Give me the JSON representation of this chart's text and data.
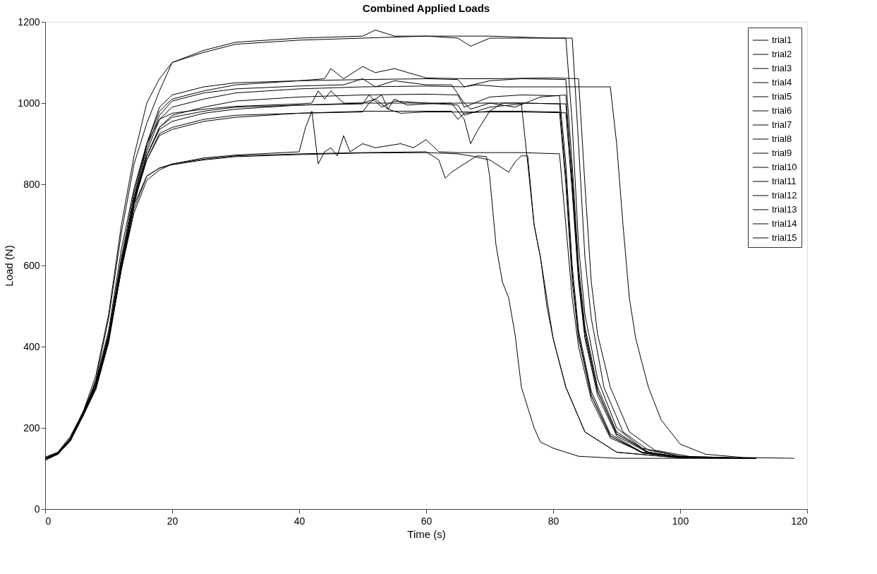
{
  "chart_data": {
    "type": "line",
    "title": "Combined Applied Loads",
    "xlabel": "Time (s)",
    "ylabel": "Load (N)",
    "xlim": [
      0,
      120
    ],
    "ylim": [
      0,
      1200
    ],
    "xticks": [
      0,
      20,
      40,
      60,
      80,
      100,
      120
    ],
    "yticks": [
      0,
      200,
      400,
      600,
      800,
      1000,
      1200
    ],
    "grid": false,
    "legend": "top right",
    "series": [
      {
        "name": "trial1",
        "color": "#000000",
        "x": [
          0,
          2,
          4,
          6,
          8,
          10,
          12,
          14,
          16,
          18,
          20,
          25,
          30,
          40,
          50,
          52,
          55,
          60,
          65,
          67,
          70,
          82,
          83,
          84,
          85,
          87,
          90,
          94,
          100,
          112
        ],
        "values": [
          125,
          135,
          170,
          230,
          320,
          470,
          680,
          850,
          950,
          1030,
          1100,
          1130,
          1150,
          1160,
          1165,
          1180,
          1165,
          1165,
          1160,
          1140,
          1160,
          1160,
          950,
          650,
          480,
          320,
          200,
          150,
          130,
          125
        ]
      },
      {
        "name": "trial2",
        "color": "#000000",
        "x": [
          0,
          2,
          4,
          6,
          8,
          10,
          12,
          14,
          16,
          18,
          20,
          25,
          30,
          40,
          50,
          60,
          70,
          80,
          83,
          84,
          85,
          86,
          88,
          91,
          95,
          100,
          112
        ],
        "values": [
          120,
          135,
          175,
          240,
          330,
          480,
          700,
          870,
          1000,
          1060,
          1100,
          1125,
          1145,
          1155,
          1160,
          1165,
          1165,
          1160,
          1160,
          900,
          620,
          470,
          300,
          190,
          145,
          130,
          125
        ]
      },
      {
        "name": "trial3",
        "color": "#000000",
        "x": [
          0,
          2,
          4,
          6,
          8,
          10,
          12,
          14,
          16,
          18,
          20,
          25,
          30,
          40,
          44,
          45,
          47,
          50,
          52,
          55,
          60,
          66,
          70,
          80,
          84,
          85,
          86,
          87,
          89,
          92,
          96,
          102,
          112
        ],
        "values": [
          125,
          140,
          180,
          240,
          310,
          420,
          600,
          760,
          900,
          980,
          1010,
          1030,
          1045,
          1055,
          1060,
          1085,
          1060,
          1090,
          1075,
          1085,
          1062,
          1060,
          1060,
          1062,
          1060,
          800,
          560,
          430,
          300,
          190,
          145,
          128,
          125
        ]
      },
      {
        "name": "trial4",
        "color": "#000000",
        "x": [
          0,
          2,
          4,
          6,
          8,
          10,
          12,
          14,
          16,
          18,
          20,
          25,
          30,
          40,
          50,
          60,
          65,
          66,
          70,
          75,
          82,
          83,
          84,
          85,
          87,
          90,
          95,
          100,
          112
        ],
        "values": [
          128,
          140,
          175,
          240,
          310,
          430,
          620,
          780,
          900,
          990,
          1020,
          1040,
          1050,
          1055,
          1058,
          1060,
          1058,
          1040,
          1055,
          1060,
          1058,
          850,
          600,
          450,
          300,
          190,
          140,
          128,
          125
        ]
      },
      {
        "name": "trial5",
        "color": "#000000",
        "x": [
          0,
          2,
          4,
          6,
          8,
          10,
          12,
          14,
          16,
          18,
          20,
          25,
          30,
          40,
          50,
          60,
          66,
          68,
          72,
          80,
          89,
          90,
          91,
          92,
          93,
          95,
          97,
          100,
          104,
          110,
          118
        ],
        "values": [
          125,
          135,
          170,
          235,
          300,
          420,
          600,
          760,
          880,
          960,
          990,
          1010,
          1025,
          1035,
          1040,
          1042,
          1040,
          1045,
          1040,
          1040,
          1040,
          900,
          700,
          520,
          420,
          300,
          220,
          160,
          135,
          127,
          125
        ]
      },
      {
        "name": "trial6",
        "color": "#000000",
        "x": [
          0,
          2,
          4,
          6,
          8,
          10,
          12,
          14,
          16,
          18,
          20,
          25,
          30,
          40,
          47,
          50,
          52,
          55,
          60,
          64,
          66,
          67,
          70,
          74,
          78,
          82,
          83,
          84,
          85,
          87,
          90,
          95,
          100,
          112
        ],
        "values": [
          125,
          138,
          172,
          238,
          305,
          425,
          610,
          770,
          890,
          970,
          1005,
          1025,
          1035,
          1042,
          1045,
          1060,
          1040,
          1055,
          1045,
          1045,
          1000,
          985,
          1000,
          990,
          1015,
          1020,
          800,
          570,
          430,
          290,
          185,
          140,
          128,
          125
        ]
      },
      {
        "name": "trial7",
        "color": "#000000",
        "x": [
          0,
          2,
          4,
          6,
          8,
          10,
          12,
          14,
          16,
          18,
          20,
          25,
          30,
          40,
          50,
          60,
          65,
          66,
          70,
          75,
          81,
          82,
          83,
          84,
          86,
          89,
          94,
          100,
          112
        ],
        "values": [
          125,
          137,
          170,
          230,
          295,
          410,
          590,
          750,
          870,
          940,
          970,
          990,
          1005,
          1015,
          1020,
          1022,
          1020,
          990,
          1015,
          1020,
          1018,
          850,
          600,
          440,
          290,
          185,
          140,
          128,
          125
        ]
      },
      {
        "name": "trial8",
        "color": "#000000",
        "x": [
          0,
          2,
          4,
          6,
          8,
          10,
          12,
          14,
          16,
          18,
          20,
          25,
          30,
          40,
          50,
          51,
          53,
          55,
          60,
          64,
          66,
          67,
          68,
          70,
          72,
          75,
          81,
          82,
          83,
          84,
          86,
          89,
          94,
          100,
          112
        ],
        "values": [
          125,
          135,
          168,
          232,
          300,
          415,
          600,
          755,
          870,
          935,
          955,
          975,
          985,
          995,
          998,
          1020,
          990,
          1005,
          1000,
          1000,
          960,
          900,
          930,
          980,
          1000,
          1000,
          998,
          820,
          580,
          430,
          280,
          180,
          140,
          128,
          125
        ]
      },
      {
        "name": "trial9",
        "color": "#000000",
        "x": [
          0,
          2,
          4,
          6,
          8,
          10,
          12,
          14,
          16,
          18,
          20,
          25,
          30,
          40,
          50,
          60,
          65,
          66,
          70,
          75,
          76,
          77,
          78,
          80,
          82,
          85,
          90,
          100,
          112
        ],
        "values": [
          125,
          136,
          170,
          235,
          300,
          420,
          600,
          760,
          870,
          940,
          965,
          980,
          990,
          995,
          1000,
          1000,
          995,
          970,
          990,
          998,
          850,
          700,
          620,
          420,
          300,
          190,
          140,
          126,
          125
        ]
      },
      {
        "name": "trial10",
        "color": "#000000",
        "x": [
          0,
          2,
          4,
          6,
          8,
          10,
          12,
          14,
          16,
          18,
          20,
          25,
          30,
          40,
          50,
          60,
          64,
          65,
          66,
          70,
          75,
          81,
          82,
          83,
          84,
          86,
          89,
          94,
          100,
          112
        ],
        "values": [
          125,
          138,
          172,
          236,
          305,
          425,
          600,
          760,
          860,
          920,
          935,
          955,
          965,
          975,
          980,
          980,
          980,
          960,
          975,
          980,
          980,
          978,
          800,
          560,
          420,
          280,
          180,
          138,
          127,
          125
        ]
      },
      {
        "name": "trial11",
        "color": "#000000",
        "x": [
          0,
          2,
          4,
          6,
          8,
          10,
          12,
          14,
          16,
          18,
          20,
          25,
          30,
          40,
          50,
          51,
          52,
          54,
          56,
          60,
          65,
          70,
          75,
          82,
          83,
          84,
          85,
          87,
          90,
          95,
          100,
          112
        ],
        "values": [
          122,
          135,
          170,
          235,
          300,
          420,
          600,
          755,
          860,
          925,
          940,
          960,
          970,
          975,
          978,
          1000,
          1010,
          985,
          975,
          978,
          978,
          978,
          978,
          976,
          780,
          560,
          420,
          280,
          180,
          138,
          127,
          125
        ]
      },
      {
        "name": "trial12",
        "color": "#000000",
        "x": [
          0,
          2,
          4,
          6,
          8,
          10,
          12,
          14,
          16,
          18,
          20,
          25,
          30,
          40,
          41,
          42,
          43,
          44,
          45,
          46,
          47,
          48,
          50,
          52,
          54,
          56,
          58,
          60,
          62,
          65,
          70,
          75,
          81,
          82,
          83,
          84,
          86,
          89,
          94,
          100,
          112
        ],
        "values": [
          125,
          137,
          175,
          240,
          310,
          430,
          610,
          750,
          820,
          840,
          850,
          865,
          872,
          880,
          940,
          980,
          850,
          880,
          890,
          870,
          920,
          880,
          900,
          890,
          895,
          900,
          890,
          910,
          880,
          878,
          878,
          878,
          875,
          700,
          520,
          400,
          270,
          175,
          140,
          127,
          125
        ]
      },
      {
        "name": "trial13",
        "color": "#000000",
        "x": [
          0,
          2,
          4,
          6,
          8,
          10,
          12,
          14,
          16,
          18,
          20,
          25,
          30,
          40,
          50,
          60,
          62,
          63,
          64,
          66,
          68,
          69.5,
          70,
          71,
          72,
          73,
          74,
          75,
          76,
          77,
          78,
          80,
          84,
          90,
          100,
          112
        ],
        "values": [
          125,
          137,
          172,
          236,
          300,
          420,
          590,
          730,
          810,
          835,
          850,
          862,
          870,
          875,
          878,
          880,
          860,
          815,
          830,
          850,
          870,
          868,
          820,
          650,
          560,
          520,
          430,
          300,
          250,
          200,
          165,
          150,
          130,
          125,
          125,
          125
        ]
      },
      {
        "name": "trial14",
        "color": "#000000",
        "x": [
          0,
          2,
          4,
          6,
          8,
          10,
          12,
          14,
          16,
          18,
          20,
          25,
          30,
          40,
          50,
          60,
          65,
          67,
          70,
          72,
          73,
          74,
          75,
          76,
          77,
          78,
          79,
          80,
          82,
          85,
          90,
          100,
          112
        ],
        "values": [
          125,
          136,
          170,
          233,
          300,
          415,
          590,
          740,
          820,
          840,
          848,
          860,
          868,
          873,
          877,
          878,
          875,
          870,
          860,
          840,
          830,
          855,
          870,
          870,
          700,
          620,
          500,
          420,
          300,
          190,
          140,
          126,
          125
        ]
      },
      {
        "name": "trial15",
        "color": "#000000",
        "x": [
          0,
          2,
          4,
          6,
          8,
          10,
          12,
          14,
          16,
          18,
          20,
          25,
          30,
          40,
          42,
          43,
          44,
          45,
          46,
          47,
          50,
          52,
          53,
          54,
          55,
          57,
          60,
          65,
          70,
          75,
          82,
          83,
          84,
          85,
          87,
          90,
          95,
          100,
          112
        ],
        "values": [
          125,
          138,
          175,
          240,
          315,
          440,
          640,
          790,
          900,
          960,
          975,
          985,
          992,
          998,
          1000,
          1030,
          1010,
          1030,
          1015,
          1000,
          1000,
          1010,
          1020,
          985,
          1010,
          995,
          998,
          1000,
          1000,
          1000,
          998,
          820,
          580,
          440,
          290,
          185,
          140,
          128,
          125
        ]
      }
    ]
  }
}
